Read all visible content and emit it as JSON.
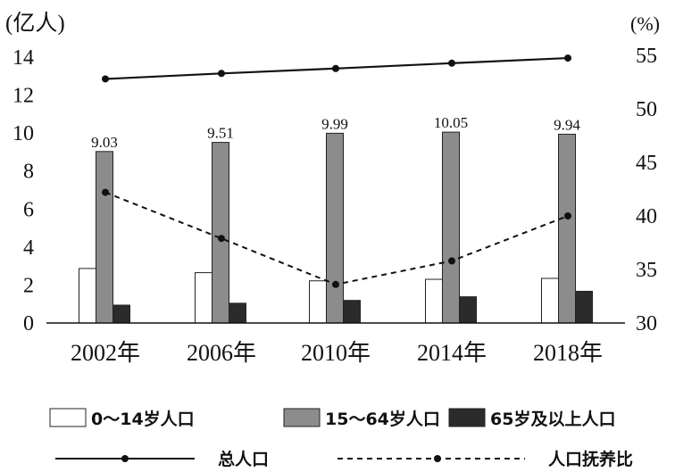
{
  "chart_data": {
    "type": "bar",
    "categories": [
      "2002年",
      "2006年",
      "2010年",
      "2014年",
      "2018年"
    ],
    "left_axis": {
      "unit_label": "(亿人)",
      "ticks": [
        0,
        2,
        4,
        6,
        8,
        10,
        12,
        14
      ],
      "ylim": [
        0,
        14
      ]
    },
    "right_axis": {
      "unit_label": "(%)",
      "ticks": [
        30,
        35,
        40,
        45,
        50,
        55
      ],
      "ylim": [
        30,
        55
      ]
    },
    "series": [
      {
        "name": "0～14岁人口",
        "kind": "bar",
        "axis": "left",
        "color": "#ffffff",
        "values": [
          2.87,
          2.65,
          2.22,
          2.3,
          2.35
        ]
      },
      {
        "name": "15～64岁人口",
        "kind": "bar",
        "axis": "left",
        "color": "#8c8c8c",
        "values": [
          9.03,
          9.51,
          9.99,
          10.05,
          9.94
        ],
        "labels": [
          "9.03",
          "9.51",
          "9.99",
          "10.05",
          "9.94"
        ]
      },
      {
        "name": "65岁及以上人口",
        "kind": "bar",
        "axis": "left",
        "color": "#2b2b2b",
        "values": [
          0.94,
          1.04,
          1.19,
          1.38,
          1.67
        ]
      },
      {
        "name": "总人口",
        "kind": "line",
        "style": "solid",
        "axis": "left",
        "color": "#111111",
        "values": [
          12.85,
          13.14,
          13.4,
          13.68,
          13.95
        ]
      },
      {
        "name": "人口抚养比",
        "kind": "line",
        "style": "dashed",
        "axis": "right",
        "color": "#111111",
        "values": [
          42.2,
          37.9,
          33.6,
          35.8,
          40.0
        ]
      }
    ],
    "legend_position": "bottom",
    "grid": false
  }
}
